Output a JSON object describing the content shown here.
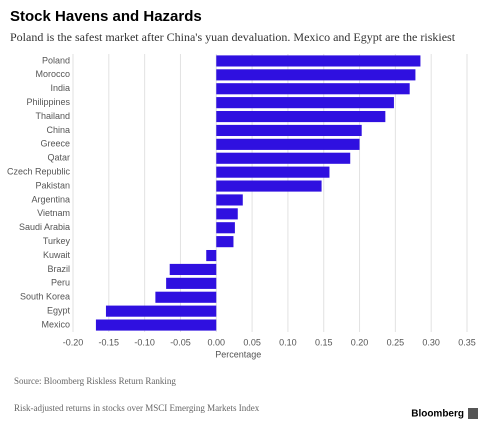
{
  "chart_data": {
    "type": "barh",
    "title": "Stock Havens and Hazards",
    "subtitle": "Poland is the safest market after China's yuan devaluation. Mexico and Egypt are the riskiest",
    "categories": [
      "Poland",
      "Morocco",
      "India",
      "Philippines",
      "Thailand",
      "China",
      "Greece",
      "Qatar",
      "Czech Republic",
      "Pakistan",
      "Argentina",
      "Vietnam",
      "Saudi Arabia",
      "Turkey",
      "Kuwait",
      "Brazil",
      "Peru",
      "South Korea",
      "Egypt",
      "Mexico"
    ],
    "values": [
      0.285,
      0.278,
      0.27,
      0.248,
      0.236,
      0.203,
      0.2,
      0.187,
      0.158,
      0.147,
      0.037,
      0.03,
      0.026,
      0.024,
      -0.014,
      -0.065,
      -0.07,
      -0.085,
      -0.154,
      -0.168
    ],
    "color": "#2f10e0",
    "xlabel": "Percentage",
    "xlim": [
      -0.2,
      0.35
    ],
    "xticks": [
      {
        "value": -0.2,
        "label": "-0.20"
      },
      {
        "value": -0.15,
        "label": "-0.15"
      },
      {
        "value": -0.1,
        "label": "-0.10"
      },
      {
        "value": -0.05,
        "label": "-0.05"
      },
      {
        "value": 0,
        "label": "0.00"
      },
      {
        "value": 0.05,
        "label": "0.05"
      },
      {
        "value": 0.1,
        "label": "0.10"
      },
      {
        "value": 0.15,
        "label": "0.15"
      },
      {
        "value": 0.2,
        "label": "0.20"
      },
      {
        "value": 0.25,
        "label": "0.25"
      },
      {
        "value": 0.3,
        "label": "0.30"
      },
      {
        "value": 0.35,
        "label": "0.35"
      }
    ],
    "grid": true,
    "source": "Source: Bloomberg Riskless Return Ranking",
    "note": "Risk-adjusted returns in stocks over MSCI Emerging Markets Index",
    "brand": "Bloomberg"
  }
}
